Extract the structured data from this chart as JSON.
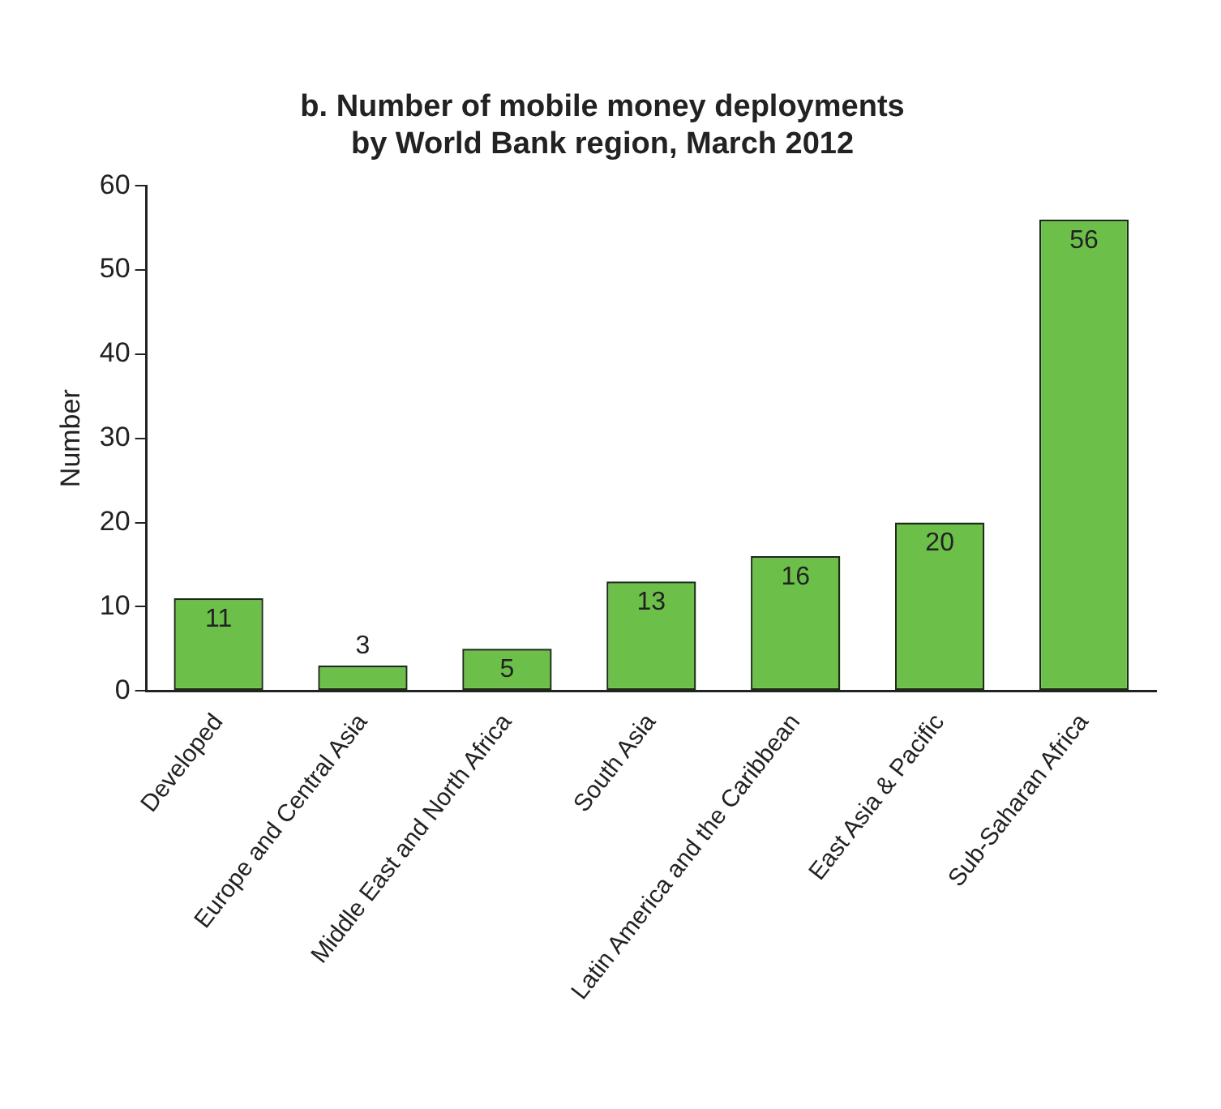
{
  "chart_data": {
    "type": "bar",
    "title": "b. Number of mobile money deployments\nby World Bank region, March 2012",
    "ylabel": "Number",
    "categories": [
      "Developed",
      "Europe and Central Asia",
      "Middle East and North Africa",
      "South Asia",
      "Latin America and the Caribbean",
      "East Asia & Pacific",
      "Sub-Saharan Africa"
    ],
    "values": [
      11,
      3,
      5,
      13,
      16,
      20,
      56
    ],
    "color": "#6cc04a",
    "ylim": [
      0,
      60
    ],
    "yticks": [
      0,
      10,
      20,
      30,
      40,
      50,
      60
    ],
    "grid": false,
    "legend": false,
    "data_labels": true
  }
}
